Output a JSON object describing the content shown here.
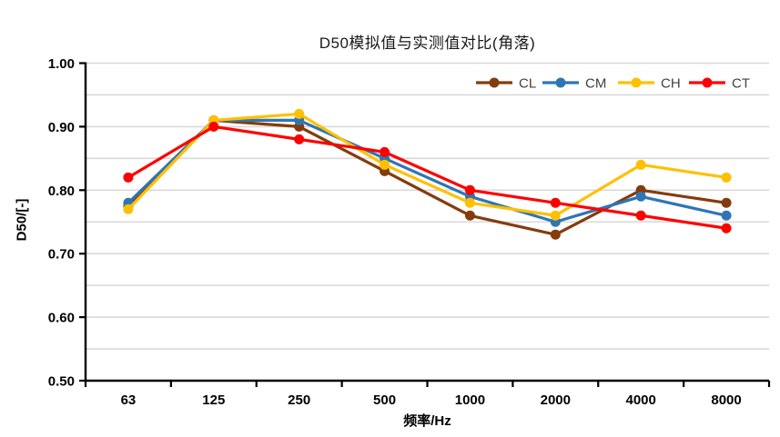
{
  "window": {
    "background": "#FFFFFF"
  },
  "chart_data": {
    "type": "line",
    "title": "D50模拟值与实测值对比(角落)",
    "xlabel": "频率/Hz",
    "ylabel": "D50/[-]",
    "categories": [
      "63",
      "125",
      "250",
      "500",
      "1000",
      "2000",
      "4000",
      "8000"
    ],
    "series": [
      {
        "name": "CL",
        "color": "#843C0C",
        "values": [
          0.775,
          0.91,
          0.9,
          0.83,
          0.76,
          0.73,
          0.8,
          0.78
        ]
      },
      {
        "name": "CM",
        "color": "#2E75B6",
        "values": [
          0.78,
          0.91,
          0.91,
          0.85,
          0.79,
          0.75,
          0.79,
          0.76
        ]
      },
      {
        "name": "CH",
        "color": "#FFC000",
        "values": [
          0.77,
          0.91,
          0.92,
          0.84,
          0.78,
          0.76,
          0.84,
          0.82
        ]
      },
      {
        "name": "CT",
        "color": "#FF0000",
        "values": [
          0.82,
          0.9,
          0.88,
          0.86,
          0.8,
          0.78,
          0.76,
          0.74
        ]
      }
    ],
    "ylim": [
      0.5,
      1.0
    ],
    "y_tick_labels": [
      "1.00",
      "0.90",
      "0.80",
      "0.70",
      "0.60",
      "0.50"
    ],
    "y_tick_step": 0.1,
    "grid_step": 0.05,
    "grid": true,
    "grid_color": "#D9D9D9",
    "axis_color": "#000000",
    "marker": "circle",
    "legend": {
      "position": "top-right-inside",
      "entries": [
        "CL",
        "CM",
        "CH",
        "CT"
      ]
    }
  }
}
